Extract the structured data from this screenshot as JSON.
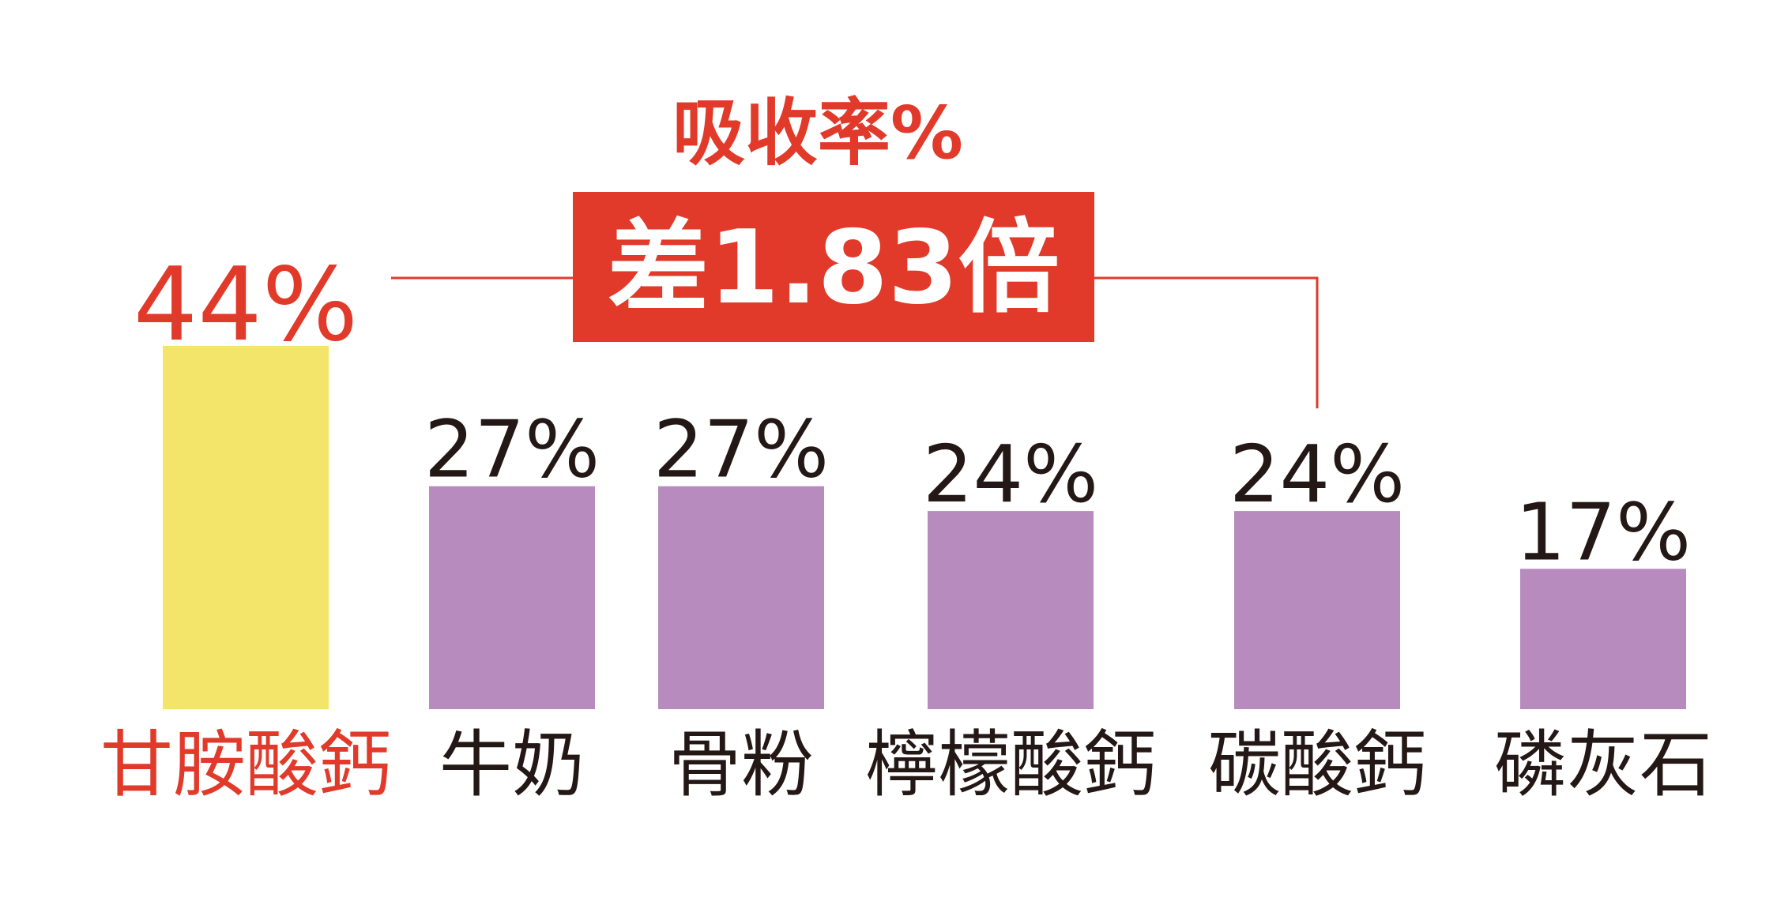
{
  "chart_data": {
    "type": "bar",
    "categories": [
      "甘胺酸鈣",
      "牛奶",
      "骨粉",
      "檸檬酸鈣",
      "碳酸鈣",
      "磷灰石"
    ],
    "values": [
      44,
      27,
      27,
      24,
      24,
      17
    ],
    "value_labels": [
      "44%",
      "27%",
      "27%",
      "24%",
      "24%",
      "17%"
    ],
    "title": "吸收率%",
    "ylim": [
      0,
      44
    ],
    "grid": false,
    "highlight_index": 0,
    "annotation": {
      "text": "差1.83倍",
      "from_index": 0,
      "to_index": 4
    },
    "colors": {
      "highlight_bar": "#f3e56a",
      "bar": "#b78bbd",
      "accent": "#e23a2a",
      "text": "#231815"
    }
  }
}
